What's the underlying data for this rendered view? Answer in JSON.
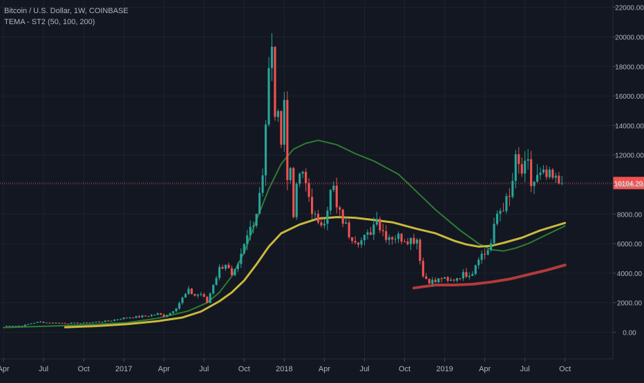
{
  "chart_data": {
    "type": "candlestick",
    "title": "Bitcoin / U.S. Dollar, 1W, COINBASE",
    "indicator": "TEMA - ST2 (50, 100, 200)",
    "last_price_label": "10104.20",
    "last_price": 10104.2,
    "y_ticks": [
      "22000.00",
      "20000.00",
      "18000.00",
      "16000.00",
      "14000.00",
      "12000.00",
      "10000.00",
      "8000.00",
      "6000.00",
      "4000.00",
      "2000.00",
      "0.00"
    ],
    "y_tick_values": [
      22000,
      20000,
      18000,
      16000,
      14000,
      12000,
      10000,
      8000,
      6000,
      4000,
      2000,
      0
    ],
    "ylim": [
      -1800,
      22500
    ],
    "x_ticks": [
      {
        "label": "Apr",
        "week": 0
      },
      {
        "label": "Jul",
        "week": 13
      },
      {
        "label": "Oct",
        "week": 26
      },
      {
        "label": "2017",
        "week": 39
      },
      {
        "label": "Apr",
        "week": 52
      },
      {
        "label": "Jul",
        "week": 65
      },
      {
        "label": "Oct",
        "week": 78
      },
      {
        "label": "2018",
        "week": 91
      },
      {
        "label": "Apr",
        "week": 104
      },
      {
        "label": "Jul",
        "week": 117
      },
      {
        "label": "Oct",
        "week": 130
      },
      {
        "label": "2019",
        "week": 143
      },
      {
        "label": "Apr",
        "week": 156
      },
      {
        "label": "Jul",
        "week": 169
      },
      {
        "label": "Oct",
        "week": 182
      }
    ],
    "xlim_weeks": [
      0,
      189
    ],
    "candle_key_points": [
      [
        0,
        420
      ],
      [
        6,
        440
      ],
      [
        10,
        650
      ],
      [
        12,
        700
      ],
      [
        14,
        650
      ],
      [
        20,
        610
      ],
      [
        26,
        620
      ],
      [
        30,
        700
      ],
      [
        34,
        760
      ],
      [
        38,
        930
      ],
      [
        40,
        1000
      ],
      [
        44,
        1050
      ],
      [
        48,
        1150
      ],
      [
        50,
        1250
      ],
      [
        52,
        1100
      ],
      [
        54,
        1300
      ],
      [
        56,
        1700
      ],
      [
        58,
        2300
      ],
      [
        60,
        2800
      ],
      [
        62,
        2500
      ],
      [
        64,
        2600
      ],
      [
        66,
        2000
      ],
      [
        68,
        3300
      ],
      [
        70,
        4300
      ],
      [
        72,
        4700
      ],
      [
        74,
        3700
      ],
      [
        76,
        4400
      ],
      [
        78,
        5800
      ],
      [
        80,
        7100
      ],
      [
        82,
        8200
      ],
      [
        84,
        11000
      ],
      [
        86,
        17500
      ],
      [
        87,
        18800
      ],
      [
        88,
        15000
      ],
      [
        89,
        14200
      ],
      [
        90,
        13500
      ],
      [
        91,
        16000
      ],
      [
        92,
        10200
      ],
      [
        93,
        11200
      ],
      [
        94,
        8200
      ],
      [
        96,
        10800
      ],
      [
        98,
        10000
      ],
      [
        100,
        8400
      ],
      [
        102,
        7100
      ],
      [
        104,
        7800
      ],
      [
        106,
        9400
      ],
      [
        107,
        9700
      ],
      [
        108,
        8300
      ],
      [
        110,
        7600
      ],
      [
        112,
        6700
      ],
      [
        114,
        6400
      ],
      [
        116,
        6200
      ],
      [
        118,
        6500
      ],
      [
        120,
        7300
      ],
      [
        121,
        8100
      ],
      [
        122,
        7100
      ],
      [
        124,
        6600
      ],
      [
        126,
        6500
      ],
      [
        130,
        6400
      ],
      [
        132,
        6300
      ],
      [
        134,
        6350
      ],
      [
        136,
        3800
      ],
      [
        138,
        3500
      ],
      [
        140,
        3400
      ],
      [
        142,
        3700
      ],
      [
        144,
        3400
      ],
      [
        146,
        3600
      ],
      [
        148,
        3850
      ],
      [
        150,
        3950
      ],
      [
        152,
        4100
      ],
      [
        154,
        5200
      ],
      [
        156,
        5300
      ],
      [
        158,
        6000
      ],
      [
        160,
        8000
      ],
      [
        162,
        8600
      ],
      [
        164,
        9000
      ],
      [
        166,
        11500
      ],
      [
        168,
        10800
      ],
      [
        170,
        11200
      ],
      [
        171,
        10000
      ],
      [
        173,
        10400
      ],
      [
        175,
        10500
      ],
      [
        177,
        10400
      ],
      [
        179,
        10200
      ],
      [
        181,
        10104
      ]
    ],
    "series": [
      {
        "name": "TEMA 50",
        "color": "#2e7d32",
        "stroke_width": 2,
        "points": [
          [
            0,
            320
          ],
          [
            20,
            450
          ],
          [
            40,
            650
          ],
          [
            50,
            950
          ],
          [
            60,
            1450
          ],
          [
            66,
            2000
          ],
          [
            70,
            2700
          ],
          [
            74,
            3800
          ],
          [
            78,
            5400
          ],
          [
            82,
            7600
          ],
          [
            86,
            9700
          ],
          [
            90,
            11400
          ],
          [
            94,
            12400
          ],
          [
            98,
            12800
          ],
          [
            102,
            13000
          ],
          [
            108,
            12700
          ],
          [
            114,
            12100
          ],
          [
            120,
            11600
          ],
          [
            128,
            10700
          ],
          [
            134,
            9500
          ],
          [
            140,
            8300
          ],
          [
            148,
            6900
          ],
          [
            154,
            6000
          ],
          [
            158,
            5600
          ],
          [
            162,
            5500
          ],
          [
            166,
            5700
          ],
          [
            170,
            6000
          ],
          [
            176,
            6600
          ],
          [
            182,
            7200
          ]
        ]
      },
      {
        "name": "TEMA 100",
        "color": "#c9b93d",
        "stroke_width": 3,
        "points": [
          [
            20,
            340
          ],
          [
            30,
            420
          ],
          [
            40,
            550
          ],
          [
            50,
            750
          ],
          [
            58,
            1000
          ],
          [
            64,
            1400
          ],
          [
            70,
            2100
          ],
          [
            74,
            2700
          ],
          [
            78,
            3500
          ],
          [
            82,
            4600
          ],
          [
            86,
            5800
          ],
          [
            90,
            6700
          ],
          [
            96,
            7300
          ],
          [
            102,
            7700
          ],
          [
            108,
            7800
          ],
          [
            114,
            7750
          ],
          [
            120,
            7600
          ],
          [
            126,
            7450
          ],
          [
            134,
            7000
          ],
          [
            140,
            6700
          ],
          [
            146,
            6200
          ],
          [
            150,
            5950
          ],
          [
            154,
            5800
          ],
          [
            158,
            5850
          ],
          [
            162,
            6050
          ],
          [
            168,
            6400
          ],
          [
            174,
            6900
          ],
          [
            182,
            7400
          ]
        ]
      },
      {
        "name": "TEMA 200",
        "color": "#b33a3a",
        "stroke_width": 4,
        "points": [
          [
            133,
            3000
          ],
          [
            140,
            3200
          ],
          [
            146,
            3200
          ],
          [
            152,
            3250
          ],
          [
            158,
            3400
          ],
          [
            164,
            3600
          ],
          [
            170,
            3900
          ],
          [
            176,
            4200
          ],
          [
            182,
            4550
          ]
        ]
      }
    ]
  }
}
